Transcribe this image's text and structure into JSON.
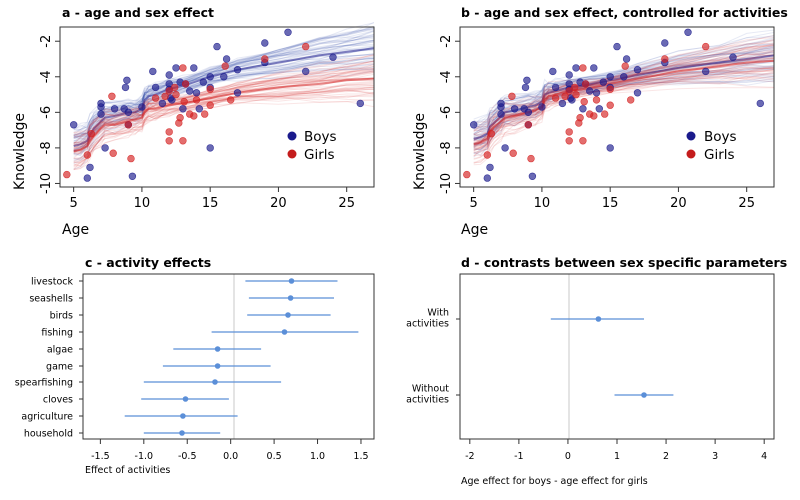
{
  "colors": {
    "boys": "#1a1a8c",
    "girls": "#d42020",
    "boys_band": "#3a4fb0",
    "girls_band": "#d43030",
    "interval": "#5b8fd8",
    "zero_line": "#c8c8c8"
  },
  "chart_data": [
    {
      "type": "scatter",
      "title": "a - age and sex effect",
      "xlabel": "Age",
      "ylabel": "Knowledge",
      "xlim": [
        4,
        27
      ],
      "ylim": [
        -10.2,
        -1.2
      ],
      "xticks": [
        5,
        10,
        15,
        20,
        25
      ],
      "yticks": [
        -2,
        -4,
        -6,
        -8,
        -10
      ],
      "legend": {
        "position": "right",
        "entries": [
          "Boys",
          "Girls"
        ]
      },
      "series": [
        {
          "name": "Boys",
          "points": [
            [
              5,
              -6.7
            ],
            [
              6,
              -9.7
            ],
            [
              6.2,
              -9.1
            ],
            [
              7,
              -6.1
            ],
            [
              7,
              -5.7
            ],
            [
              7,
              -5.5
            ],
            [
              7.3,
              -8.0
            ],
            [
              8,
              -5.8
            ],
            [
              8.7,
              -5.8
            ],
            [
              8.8,
              -4.6
            ],
            [
              8.9,
              -4.2
            ],
            [
              9,
              -6.0
            ],
            [
              9,
              -6.7
            ],
            [
              9.3,
              -9.6
            ],
            [
              10,
              -5.7
            ],
            [
              10.8,
              -3.7
            ],
            [
              11,
              -4.6
            ],
            [
              11.5,
              -5.5
            ],
            [
              12,
              -3.9
            ],
            [
              12,
              -4.4
            ],
            [
              12,
              -4.7
            ],
            [
              12.1,
              -5.2
            ],
            [
              12.2,
              -5.3
            ],
            [
              12.5,
              -3.5
            ],
            [
              12.8,
              -4.3
            ],
            [
              13,
              -5.8
            ],
            [
              13.2,
              -4.4
            ],
            [
              13.5,
              -4.8
            ],
            [
              13.8,
              -3.5
            ],
            [
              14,
              -4.9
            ],
            [
              14.2,
              -5.8
            ],
            [
              14.5,
              -4.3
            ],
            [
              15,
              -4.0
            ],
            [
              15,
              -4.6
            ],
            [
              15,
              -8.0
            ],
            [
              15.5,
              -2.3
            ],
            [
              16,
              -4.0
            ],
            [
              16.2,
              -3.0
            ],
            [
              17,
              -3.6
            ],
            [
              17,
              -4.9
            ],
            [
              19,
              -2.1
            ],
            [
              19,
              -3.2
            ],
            [
              20.7,
              -1.5
            ],
            [
              22,
              -3.7
            ],
            [
              24,
              -2.9
            ],
            [
              26,
              -5.5
            ]
          ]
        },
        {
          "name": "Girls",
          "points": [
            [
              4.5,
              -9.5
            ],
            [
              6,
              -8.4
            ],
            [
              6.3,
              -7.2
            ],
            [
              7.8,
              -5.1
            ],
            [
              7.9,
              -8.3
            ],
            [
              9,
              -6.7
            ],
            [
              9.2,
              -8.6
            ],
            [
              11,
              -5.2
            ],
            [
              11.7,
              -5.1
            ],
            [
              12,
              -4.8
            ],
            [
              12,
              -7.1
            ],
            [
              12,
              -7.6
            ],
            [
              12.4,
              -4.6
            ],
            [
              12.5,
              -5.0
            ],
            [
              12.7,
              -6.6
            ],
            [
              12.8,
              -6.3
            ],
            [
              13,
              -3.5
            ],
            [
              13,
              -7.6
            ],
            [
              13.1,
              -5.4
            ],
            [
              13.2,
              -4.4
            ],
            [
              13.5,
              -6.1
            ],
            [
              13.8,
              -6.2
            ],
            [
              14,
              -5.3
            ],
            [
              14.6,
              -6.1
            ],
            [
              15,
              -5.6
            ],
            [
              15,
              -4.7
            ],
            [
              16.1,
              -3.4
            ],
            [
              16.5,
              -5.3
            ],
            [
              19,
              -3.0
            ],
            [
              22,
              -2.3
            ]
          ]
        }
      ],
      "bands": [
        {
          "name": "Boys",
          "x": [
            5,
            5.5,
            6,
            6.2,
            6.5,
            7,
            7.3,
            8,
            9,
            9.5,
            10,
            10.2,
            10.5,
            11,
            12,
            13,
            15,
            17,
            20,
            23,
            25,
            27
          ],
          "y": [
            -7.9,
            -7.8,
            -7.6,
            -7.2,
            -6.9,
            -6.5,
            -6.3,
            -6.2,
            -6.0,
            -6.0,
            -5.8,
            -5.3,
            -5.1,
            -5.0,
            -4.7,
            -4.5,
            -4.0,
            -3.6,
            -3.2,
            -2.8,
            -2.6,
            -2.4
          ]
        },
        {
          "name": "Girls",
          "x": [
            5,
            5.5,
            6,
            6.2,
            6.5,
            7,
            7.3,
            8,
            9,
            9.5,
            10,
            10.2,
            10.5,
            11,
            12,
            13,
            15,
            17,
            20,
            23,
            25,
            27
          ],
          "y": [
            -8.2,
            -8.1,
            -7.9,
            -7.6,
            -7.3,
            -6.9,
            -6.7,
            -6.7,
            -6.5,
            -6.4,
            -6.3,
            -6.0,
            -5.8,
            -5.8,
            -5.6,
            -5.5,
            -5.2,
            -4.9,
            -4.6,
            -4.4,
            -4.2,
            -4.1
          ]
        }
      ]
    },
    {
      "type": "scatter",
      "title": "b - age and sex effect, controlled for activities",
      "xlabel": "Age",
      "ylabel": "Knowledge",
      "xlim": [
        4,
        27
      ],
      "ylim": [
        -10.2,
        -1.2
      ],
      "xticks": [
        5,
        10,
        15,
        20,
        25
      ],
      "yticks": [
        -2,
        -4,
        -6,
        -8,
        -10
      ],
      "legend": {
        "position": "right",
        "entries": [
          "Boys",
          "Girls"
        ]
      },
      "bands": [
        {
          "name": "Boys",
          "x": [
            5,
            5.5,
            6,
            6.2,
            6.5,
            7,
            7.3,
            8,
            9,
            9.5,
            10,
            10.2,
            10.5,
            11,
            12,
            13,
            15,
            17,
            20,
            23,
            25,
            27
          ],
          "y": [
            -7.5,
            -7.4,
            -7.2,
            -6.8,
            -6.6,
            -6.2,
            -6.0,
            -5.9,
            -5.7,
            -5.6,
            -5.4,
            -5.0,
            -4.9,
            -4.8,
            -4.6,
            -4.5,
            -4.2,
            -3.9,
            -3.5,
            -3.2,
            -3.0,
            -2.8
          ]
        },
        {
          "name": "Girls",
          "x": [
            5,
            5.5,
            6,
            6.2,
            6.5,
            7,
            7.3,
            8,
            9,
            9.5,
            10,
            10.2,
            10.5,
            11,
            12,
            13,
            15,
            17,
            20,
            23,
            25,
            27
          ],
          "y": [
            -7.8,
            -7.7,
            -7.5,
            -7.1,
            -6.8,
            -6.5,
            -6.3,
            -6.2,
            -6.0,
            -5.9,
            -5.7,
            -5.3,
            -5.1,
            -5.0,
            -4.8,
            -4.7,
            -4.4,
            -4.1,
            -3.7,
            -3.4,
            -3.2,
            -3.1
          ]
        }
      ]
    },
    {
      "type": "interval",
      "title": "c - activity effects",
      "xlabel": "Effect of activities",
      "xlim": [
        -1.7,
        1.65
      ],
      "xticks": [
        "-1.5",
        "-1.0",
        "-0.5",
        "0.0",
        "0.5",
        "1.0",
        "1.5"
      ],
      "categories": [
        "livestock",
        "seashells",
        "birds",
        "fishing",
        "algae",
        "game",
        "spearfishing",
        "cloves",
        "agriculture",
        "household"
      ],
      "mean": [
        0.7,
        0.69,
        0.66,
        0.62,
        -0.15,
        -0.15,
        -0.18,
        -0.52,
        -0.55,
        -0.56
      ],
      "lower": [
        0.17,
        0.21,
        0.19,
        -0.22,
        -0.66,
        -0.78,
        -1.0,
        -1.03,
        -1.22,
        -1.0
      ],
      "upper": [
        1.23,
        1.19,
        1.15,
        1.47,
        0.35,
        0.46,
        0.58,
        -0.02,
        0.08,
        -0.12
      ]
    },
    {
      "type": "interval",
      "title": "d - contrasts between sex specific parameters",
      "xlabel": "Age effect for boys - age effect for girls",
      "xlim": [
        -2.2,
        4.2
      ],
      "xticks": [
        "-2",
        "-1",
        "0",
        "1",
        "2",
        "3",
        "4"
      ],
      "categories": [
        "With activities",
        "Without activities"
      ],
      "category_lines": [
        [
          "With",
          "activities"
        ],
        [
          "Without",
          "activities"
        ]
      ],
      "mean": [
        0.62,
        1.55
      ],
      "lower": [
        -0.35,
        0.95
      ],
      "upper": [
        1.55,
        2.15
      ]
    }
  ]
}
